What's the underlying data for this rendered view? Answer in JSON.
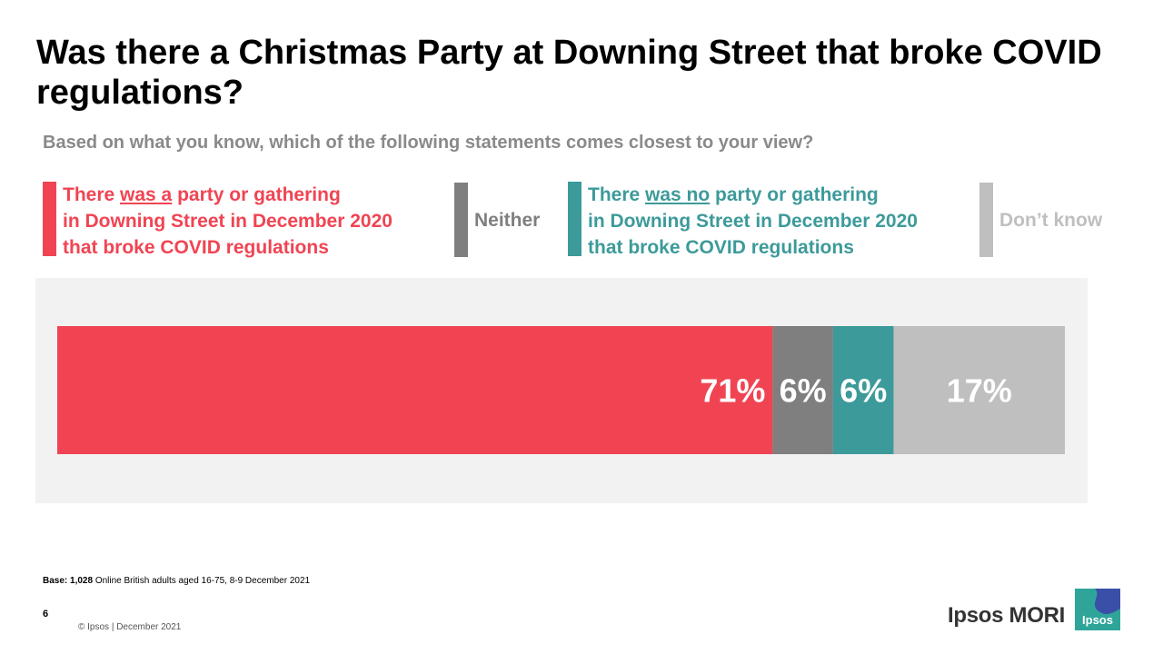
{
  "title": "Was there a Christmas Party at Downing Street that broke COVID regulations?",
  "subtitle": "Based on what you know, which of the following statements comes closest to your view?",
  "legend": {
    "party": {
      "l1a": "There ",
      "l1u": "was a",
      "l1b": " party or gathering",
      "l2": "in Downing Street in December 2020",
      "l3": "that broke COVID regulations",
      "color": "#f04453"
    },
    "neither": {
      "label": "Neither",
      "color": "#7f7f7f"
    },
    "noparty": {
      "l1a": "There ",
      "l1u": "was no",
      "l1b": " party or gathering",
      "l2": "in Downing Street in December 2020",
      "l3": "that broke COVID regulations",
      "color": "#3d9a9a"
    },
    "dontknow": {
      "label": "Don’t know",
      "color": "#bfbfbf"
    }
  },
  "chart_data": {
    "type": "bar",
    "orientation": "horizontal-stacked-100",
    "categories": [
      "Based on what you know"
    ],
    "series": [
      {
        "name": "There was a party or gathering in Downing Street in December 2020 that broke COVID regulations",
        "values": [
          71
        ],
        "label": "71%",
        "color": "#f04453"
      },
      {
        "name": "Neither",
        "values": [
          6
        ],
        "label": "6%",
        "color": "#7f7f7f"
      },
      {
        "name": "There was no party or gathering in Downing Street in December 2020 that broke COVID regulations",
        "values": [
          6
        ],
        "label": "6%",
        "color": "#3d9a9a"
      },
      {
        "name": "Don’t know",
        "values": [
          17
        ],
        "label": "17%",
        "color": "#bfbfbf"
      }
    ],
    "xlim": [
      0,
      100
    ]
  },
  "footer": {
    "base_bold": "Base: 1,028",
    "base_rest": " Online British adults aged 16-75, 8-9 December 2021",
    "page_number": "6",
    "copyright": "© Ipsos | December 2021",
    "brand": "Ipsos MORI",
    "logo_text": "Ipsos"
  }
}
